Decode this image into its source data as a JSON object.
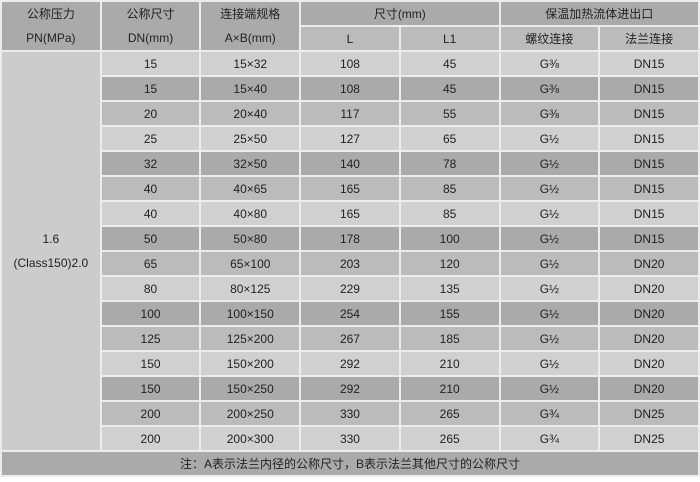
{
  "header": {
    "pressure": [
      "公称压力",
      "PN(MPa)"
    ],
    "nominal": [
      "公称尺寸",
      "DN(mm)"
    ],
    "conn": [
      "连接端规格",
      "A×B(mm)"
    ],
    "size": "尺寸(mm)",
    "size_l": "L",
    "size_l1": "L1",
    "heating": "保温加热流体进出口",
    "thread": "螺纹连接",
    "flange": "法兰连接"
  },
  "pressure_value": [
    "1.6",
    "(Class150)2.0"
  ],
  "rows": [
    [
      "15",
      "15×32",
      "108",
      "45",
      "G⅜",
      "DN15"
    ],
    [
      "15",
      "15×40",
      "108",
      "45",
      "G⅜",
      "DN15"
    ],
    [
      "20",
      "20×40",
      "117",
      "55",
      "G⅜",
      "DN15"
    ],
    [
      "25",
      "25×50",
      "127",
      "65",
      "G½",
      "DN15"
    ],
    [
      "32",
      "32×50",
      "140",
      "78",
      "G½",
      "DN15"
    ],
    [
      "40",
      "40×65",
      "165",
      "85",
      "G½",
      "DN15"
    ],
    [
      "40",
      "40×80",
      "165",
      "85",
      "G½",
      "DN15"
    ],
    [
      "50",
      "50×80",
      "178",
      "100",
      "G½",
      "DN15"
    ],
    [
      "65",
      "65×100",
      "203",
      "120",
      "G½",
      "DN20"
    ],
    [
      "80",
      "80×125",
      "229",
      "135",
      "G½",
      "DN20"
    ],
    [
      "100",
      "100×150",
      "254",
      "155",
      "G½",
      "DN20"
    ],
    [
      "125",
      "125×200",
      "267",
      "185",
      "G½",
      "DN20"
    ],
    [
      "150",
      "150×200",
      "292",
      "210",
      "G½",
      "DN20"
    ],
    [
      "150",
      "150×250",
      "292",
      "210",
      "G½",
      "DN20"
    ],
    [
      "200",
      "200×250",
      "330",
      "265",
      "G¾",
      "DN25"
    ],
    [
      "200",
      "200×300",
      "330",
      "265",
      "G¾",
      "DN25"
    ]
  ],
  "note": "注：A表示法兰内径的公称尺寸，B表示法兰其他尺寸的公称尺寸"
}
